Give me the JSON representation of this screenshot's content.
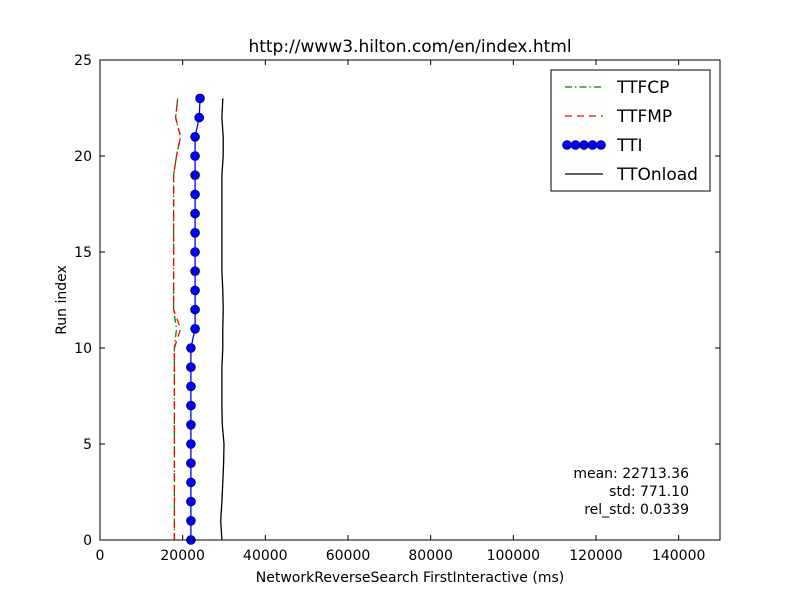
{
  "chart_data": {
    "type": "line",
    "title": "http://www3.hilton.com/en/index.html",
    "xlabel": "NetworkReverseSearch FirstInteractive (ms)",
    "ylabel": "Run index",
    "xlim": [
      0,
      150000
    ],
    "ylim": [
      0,
      25
    ],
    "xticks": [
      0,
      20000,
      40000,
      60000,
      80000,
      100000,
      120000,
      140000
    ],
    "yticks": [
      0,
      5,
      10,
      15,
      20,
      25
    ],
    "grid": false,
    "legend_position": "top-right",
    "series": [
      {
        "name": "TTFCP",
        "style": "dash-dot",
        "color": "#008000",
        "x": [
          18000,
          18000,
          18000,
          18000,
          18000,
          18000,
          18000,
          18000,
          18000,
          18000,
          18000,
          18500,
          17800,
          17800,
          17800,
          17800,
          17800,
          17800,
          17800,
          17800,
          18500,
          19500,
          18300,
          18800
        ],
        "y": [
          0,
          1,
          2,
          3,
          4,
          5,
          6,
          7,
          8,
          9,
          10,
          11,
          12,
          13,
          14,
          15,
          16,
          17,
          18,
          19,
          20,
          21,
          22,
          23
        ]
      },
      {
        "name": "TTFMP",
        "style": "dashed",
        "color": "#ff0000",
        "x": [
          18000,
          18000,
          18000,
          18000,
          18000,
          18000,
          18000,
          18000,
          18000,
          18000,
          18000,
          19500,
          17800,
          17800,
          17800,
          17800,
          17800,
          17800,
          17800,
          17800,
          18500,
          19500,
          18300,
          18800
        ],
        "y": [
          0,
          1,
          2,
          3,
          4,
          5,
          6,
          7,
          8,
          9,
          10,
          11,
          12,
          13,
          14,
          15,
          16,
          17,
          18,
          19,
          20,
          21,
          22,
          23
        ]
      },
      {
        "name": "TTI",
        "style": "solid-with-circle-markers",
        "color": "#0000ff",
        "x": [
          22000,
          22000,
          22000,
          22000,
          22000,
          22000,
          22000,
          22000,
          22000,
          22000,
          22000,
          23000,
          23000,
          23000,
          23000,
          23000,
          23000,
          23000,
          23000,
          23000,
          23000,
          23000,
          24000,
          24200
        ],
        "y": [
          0,
          1,
          2,
          3,
          4,
          5,
          6,
          7,
          8,
          9,
          10,
          11,
          12,
          13,
          14,
          15,
          16,
          17,
          18,
          19,
          20,
          21,
          22,
          23
        ]
      },
      {
        "name": "TTOnload",
        "style": "solid",
        "color": "#000000",
        "x": [
          29500,
          29200,
          29500,
          29700,
          29900,
          30000,
          29600,
          29500,
          29500,
          29500,
          29700,
          29700,
          29800,
          29700,
          29500,
          29500,
          29500,
          29500,
          29500,
          29500,
          29800,
          29800,
          29500,
          29700
        ],
        "y": [
          0,
          1,
          2,
          3,
          4,
          5,
          6,
          7,
          8,
          9,
          10,
          11,
          12,
          13,
          14,
          15,
          16,
          17,
          18,
          19,
          20,
          21,
          22,
          23
        ]
      }
    ],
    "stats": {
      "mean": "mean: 22713.36",
      "std": "std: 771.10",
      "rel_std": "rel_std: 0.0339"
    }
  }
}
